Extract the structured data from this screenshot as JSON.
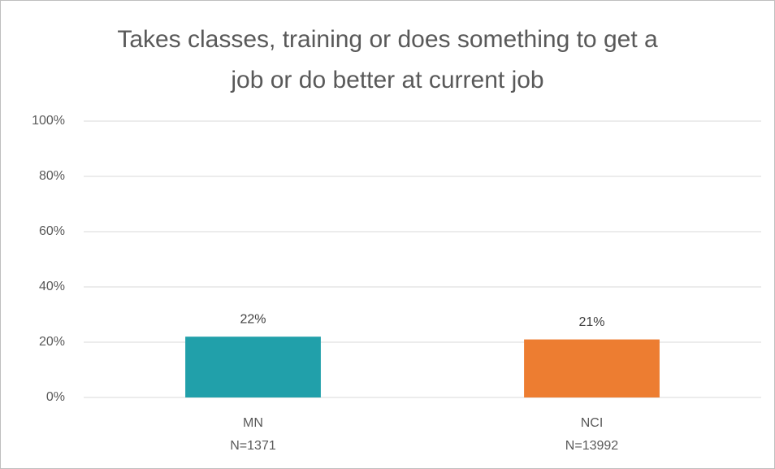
{
  "chart_data": {
    "type": "bar",
    "title": [
      "Takes classes, training or does something to get a",
      "job or do better at current job"
    ],
    "categories": [
      [
        "MN",
        "N=1371"
      ],
      [
        "NCI",
        "N=13992"
      ]
    ],
    "values": [
      22,
      21
    ],
    "value_labels": [
      "22%",
      "21%"
    ],
    "colors": [
      "#21a0aa",
      "#ed7d31"
    ],
    "ylim": [
      0,
      100
    ],
    "yticks": [
      {
        "value": 0,
        "label": "0%"
      },
      {
        "value": 20,
        "label": "20%"
      },
      {
        "value": 40,
        "label": "40%"
      },
      {
        "value": 60,
        "label": "60%"
      },
      {
        "value": 80,
        "label": "80%"
      },
      {
        "value": 100,
        "label": "100%"
      }
    ],
    "grid": true
  }
}
